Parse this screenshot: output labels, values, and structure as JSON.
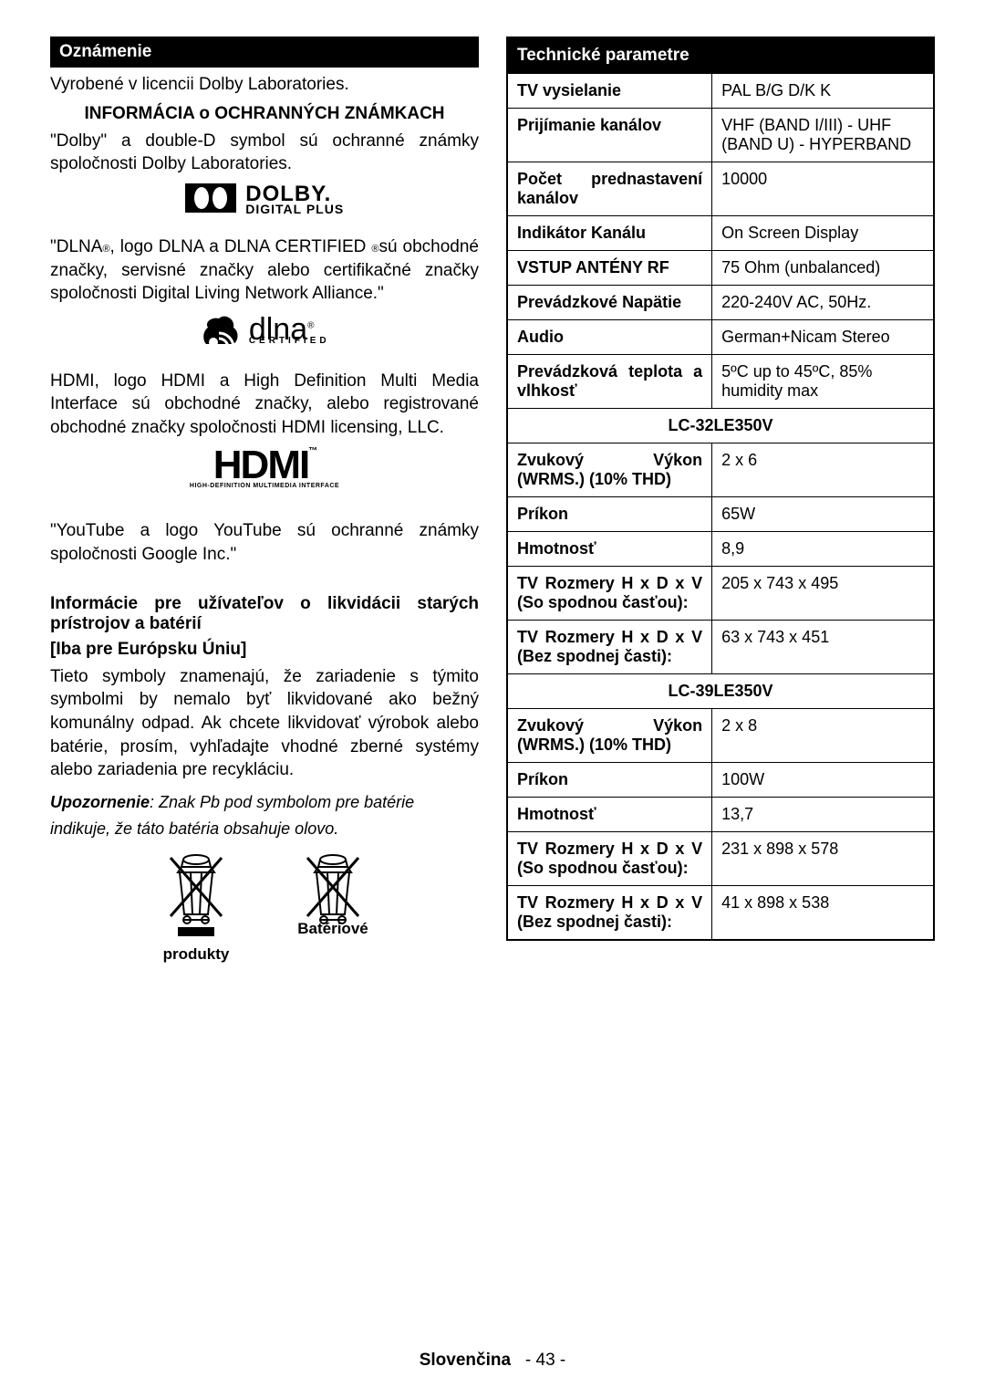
{
  "left": {
    "header1": "Oznámenie",
    "p1": "Vyrobené v licencii Dolby Laboratories.",
    "h2": "INFORMÁCIA o OCHRANNÝCH ZNÁMKACH",
    "p2": "\"Dolby\" a double-D symbol sú ochranné známky spoločnosti Dolby Laboratories.",
    "dolby_line1": "DOLBY.",
    "dolby_line2": "DIGITAL PLUS",
    "p3a": "\"DLNA",
    "p3b": ", logo DLNA a DLNA CERTIFIED ",
    "p3c": "sú obchodné značky, servisné značky alebo certifikačné značky spoločnosti Digital Living Network Alliance.\"",
    "dlna_text": "dlna",
    "dlna_sub": "CERTIFIED",
    "p4": "HDMI, logo HDMI a High Definition Multi Media Interface sú obchodné značky, alebo registrované obchodné značky spoločnosti HDMI licensing, LLC.",
    "hdmi_main": "HDMI",
    "hdmi_sub": "HIGH-DEFINITION MULTIMEDIA INTERFACE",
    "p5": "\"YouTube a logo YouTube sú ochranné známky spoločnosti Google Inc.\"",
    "h3": "Informácie pre užívateľov o likvidácii starých prístrojov a batérií",
    "h4": "[Iba pre Európsku Úniu]",
    "p6": "Tieto symboly znamenajú, že zariadenie s týmito symbolmi by nemalo byť likvidované ako bežný komunálny odpad. Ak chcete likvidovať výrobok alebo batérie, prosím, vyhľadajte vhodné zberné systémy alebo zariadenia pre recykláciu.",
    "warn_bold": "Upozornenie",
    "warn_rest": ": Znak Pb pod symbolom pre batérie indikuje, že táto batéria obsahuje olovo.",
    "bin1_label": "produkty",
    "bin2_label": "Batériové"
  },
  "right": {
    "header": "Technické parametre",
    "rows1": [
      {
        "l": "TV vysielanie",
        "v": "PAL B/G D/K K"
      },
      {
        "l": "Prijímanie kanálov",
        "v": "VHF (BAND I/III) - UHF (BAND U) - HYPERBAND"
      },
      {
        "l": "Počet prednastavení kanálov",
        "v": "10000"
      },
      {
        "l": "Indikátor Kanálu",
        "v": "On Screen Display"
      },
      {
        "l": "VSTUP ANTÉNY RF",
        "v": "75 Ohm (unbalanced)"
      },
      {
        "l": "Prevádzkové Napätie",
        "v": "220-240V AC, 50Hz."
      },
      {
        "l": "Audio",
        "v": "German+Nicam Stereo"
      },
      {
        "l": "Prevádzková teplota a vlhkosť",
        "v": "5ºC up to 45ºC, 85% humidity max"
      }
    ],
    "model1": "LC-32LE350V",
    "rows2": [
      {
        "l": "Zvukový Výkon (WRMS.) (10% THD)",
        "v": "2 x 6"
      },
      {
        "l": "Príkon",
        "v": "65W"
      },
      {
        "l": "Hmotnosť",
        "v": "8,9"
      },
      {
        "l": "TV Rozmery H x D x V (So spodnou časťou):",
        "v": "205 x 743 x 495"
      },
      {
        "l": "TV Rozmery H x D x V (Bez spodnej časti):",
        "v": "63 x 743 x 451"
      }
    ],
    "model2": "LC-39LE350V",
    "rows3": [
      {
        "l": "Zvukový Výkon (WRMS.) (10% THD)",
        "v": "2 x 8"
      },
      {
        "l": "Príkon",
        "v": "100W"
      },
      {
        "l": "Hmotnosť",
        "v": "13,7"
      },
      {
        "l": "TV Rozmery H x D x V (So spodnou časťou):",
        "v": "231 x 898 x 578"
      },
      {
        "l": "TV Rozmery H x D x V (Bez spodnej časti):",
        "v": "41 x 898 x 538"
      }
    ]
  },
  "footer": {
    "lang": "Slovenčina",
    "page": "- 43 -"
  }
}
